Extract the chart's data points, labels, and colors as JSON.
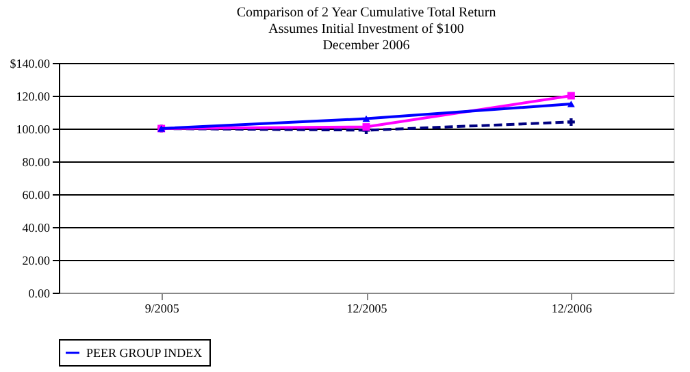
{
  "chart_data": {
    "type": "line",
    "title": [
      "Comparison of 2 Year Cumulative Total Return",
      "Assumes Initial Investment of $100",
      "December 2006"
    ],
    "categories": [
      "9/2005",
      "12/2005",
      "12/2006"
    ],
    "series": [
      {
        "color": "#000080",
        "values": [
          100,
          99,
          104
        ],
        "marker": "cross",
        "line_style": "dashed"
      },
      {
        "color": "#ff00ff",
        "values": [
          100,
          101,
          120
        ],
        "marker": "square",
        "line_style": "solid"
      },
      {
        "name": "PEER GROUP INDEX",
        "color": "#0000ff",
        "values": [
          100,
          106,
          115
        ],
        "marker": "triangle",
        "line_style": "solid"
      }
    ],
    "ylim": [
      0,
      140
    ],
    "yticks": [
      {
        "value": 0,
        "label": "0.00"
      },
      {
        "value": 20,
        "label": "20.00"
      },
      {
        "value": 40,
        "label": "40.00"
      },
      {
        "value": 60,
        "label": "60.00"
      },
      {
        "value": 80,
        "label": "80.00"
      },
      {
        "value": 100,
        "label": "100.00"
      },
      {
        "value": 120,
        "label": "120.00"
      },
      {
        "value": 140,
        "label": "$140.00"
      }
    ],
    "grid": "y",
    "legend": "bottom"
  }
}
